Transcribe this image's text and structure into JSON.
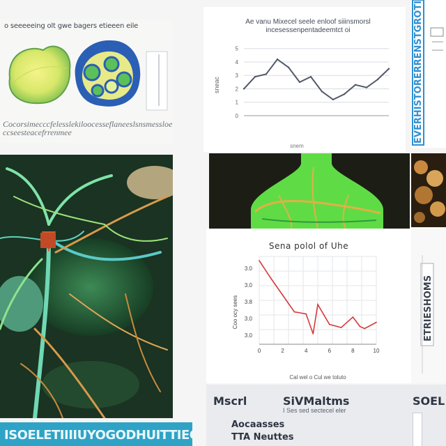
{
  "specimens": {
    "caption": "o seeeeeing olt gwe bagers etieeen eile",
    "footnote": "Cocorsimecccfelesslekiloocesseflaneeslsnsmessloelkstrs ccseesteacefrrenmee"
  },
  "line_chart_panel": {
    "title": "Ae vanu Mixecel seele enloof siiinsmorsl incesessenpentadeemtct oi",
    "ylabel": "sneac",
    "xlabel": "snem"
  },
  "right_strip": {
    "label": "EVERHISTORERRENSTGROTISTER"
  },
  "banner": {
    "text": "ISOELETIIIIUYOGODHUITTIEC"
  },
  "decay_panel": {
    "title": "Sena polol of Uhe",
    "ylabel": "Coo ocy sees",
    "xlabel": "Cal wel o Cul we toluto"
  },
  "right_mid": {
    "label": "ETRIESHOMS"
  },
  "table": {
    "col1": "Mscrl",
    "col2": "SiVMaltms",
    "col3": "SOEL",
    "sub": "I Ses sed sectecel eler",
    "row1": "Aocaasses",
    "row2": "TTA Neuttes"
  },
  "colors": {
    "line_series": "#505867",
    "decay_series": "#d63a3a",
    "banner": "#2fa3c6",
    "strip_text": "#2f8fd0"
  },
  "chart_data": [
    {
      "type": "line",
      "title": "Ae vanu Mixecel seele enloof siiinsmorsl incesessenpentadeemtct oi",
      "ylabel": "sneac",
      "xlabel": "snem",
      "x": [
        1,
        2,
        3,
        4,
        5,
        6,
        7,
        8,
        9,
        10,
        11,
        12,
        13,
        14
      ],
      "series": [
        {
          "values": [
            2.0,
            2.9,
            3.1,
            4.2,
            3.6,
            2.5,
            2.9,
            1.8,
            1.2,
            1.6,
            2.3,
            2.1,
            2.7,
            3.5
          ]
        }
      ],
      "yticks": [
        0,
        1,
        2,
        3,
        4,
        5
      ],
      "ylim": [
        0,
        5.4
      ],
      "grid": true
    },
    {
      "type": "line",
      "title": "Sena polol of Uhe",
      "ylabel": "Coo ocy sees",
      "xlabel": "Cal wel o Cul we toluto",
      "xticks": [
        0,
        2,
        4,
        6,
        8,
        10
      ],
      "yticks": [
        "3.0",
        "3.0",
        "3.8",
        "3.0",
        "3.0"
      ],
      "x": [
        0,
        1,
        2,
        3,
        4,
        4.6,
        5,
        6,
        7,
        8,
        8.6,
        9,
        10
      ],
      "series": [
        {
          "values": [
            10.0,
            8.3,
            6.7,
            5.1,
            4.9,
            3.0,
            5.8,
            3.9,
            3.6,
            4.6,
            3.7,
            3.5,
            4.1
          ]
        }
      ],
      "xlim": [
        0,
        10
      ],
      "ylim": [
        2.0,
        10.4
      ],
      "grid": true
    }
  ]
}
